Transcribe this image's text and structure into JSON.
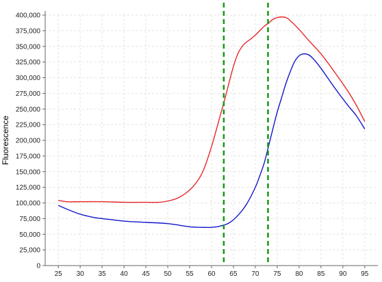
{
  "chart_data": {
    "type": "line",
    "title": "",
    "xlabel": "",
    "ylabel": "Fluorescence",
    "xlim": [
      22,
      98
    ],
    "ylim": [
      0,
      400000
    ],
    "x_ticks": [
      25,
      30,
      35,
      40,
      45,
      50,
      55,
      60,
      65,
      70,
      75,
      80,
      85,
      90,
      95
    ],
    "y_ticks": [
      0,
      25000,
      50000,
      75000,
      100000,
      125000,
      150000,
      175000,
      200000,
      225000,
      250000,
      275000,
      300000,
      325000,
      350000,
      375000,
      400000
    ],
    "y_tick_labels": [
      "0",
      "25,000",
      "50,000",
      "75,000",
      "100,000",
      "125,000",
      "150,000",
      "175,000",
      "200,000",
      "225,000",
      "250,000",
      "275,000",
      "300,000",
      "325,000",
      "350,000",
      "375,000",
      "400,000"
    ],
    "grid": true,
    "legend": "none",
    "series": [
      {
        "color": "#e8262a",
        "points": [
          [
            25,
            104000
          ],
          [
            27,
            102000
          ],
          [
            30,
            102000
          ],
          [
            35,
            102000
          ],
          [
            40,
            101000
          ],
          [
            45,
            101000
          ],
          [
            48,
            101000
          ],
          [
            50,
            103000
          ],
          [
            52,
            107000
          ],
          [
            54,
            115000
          ],
          [
            56,
            128000
          ],
          [
            58,
            150000
          ],
          [
            60,
            190000
          ],
          [
            62,
            240000
          ],
          [
            63,
            265000
          ],
          [
            64,
            292000
          ],
          [
            65,
            318000
          ],
          [
            66,
            338000
          ],
          [
            67,
            350000
          ],
          [
            68,
            357000
          ],
          [
            69,
            362000
          ],
          [
            70,
            368000
          ],
          [
            71,
            375000
          ],
          [
            72,
            382000
          ],
          [
            73,
            387000
          ],
          [
            74,
            393000
          ],
          [
            75,
            396000
          ],
          [
            76,
            397000
          ],
          [
            77,
            396000
          ],
          [
            78,
            391000
          ],
          [
            80,
            377000
          ],
          [
            82,
            361000
          ],
          [
            85,
            338000
          ],
          [
            88,
            310000
          ],
          [
            91,
            280000
          ],
          [
            93,
            257000
          ],
          [
            95,
            230000
          ]
        ]
      },
      {
        "color": "#1414cc",
        "points": [
          [
            25,
            96000
          ],
          [
            27,
            90000
          ],
          [
            30,
            82000
          ],
          [
            33,
            77000
          ],
          [
            35,
            75000
          ],
          [
            40,
            71000
          ],
          [
            45,
            69000
          ],
          [
            50,
            67000
          ],
          [
            55,
            62000
          ],
          [
            58,
            61000
          ],
          [
            60,
            61000
          ],
          [
            62,
            63000
          ],
          [
            64,
            68000
          ],
          [
            66,
            80000
          ],
          [
            68,
            98000
          ],
          [
            70,
            125000
          ],
          [
            71,
            143000
          ],
          [
            72,
            163000
          ],
          [
            73,
            190000
          ],
          [
            74,
            218000
          ],
          [
            75,
            245000
          ],
          [
            76,
            268000
          ],
          [
            77,
            291000
          ],
          [
            78,
            310000
          ],
          [
            79,
            326000
          ],
          [
            80,
            335000
          ],
          [
            81,
            338000
          ],
          [
            82,
            337000
          ],
          [
            83,
            332000
          ],
          [
            85,
            315000
          ],
          [
            88,
            285000
          ],
          [
            91,
            257000
          ],
          [
            93,
            240000
          ],
          [
            95,
            218000
          ]
        ]
      }
    ],
    "vertical_markers": [
      {
        "x": 62.8,
        "color": "#119911",
        "style": "dashed"
      },
      {
        "x": 72.9,
        "color": "#119911",
        "style": "dashed"
      }
    ]
  }
}
